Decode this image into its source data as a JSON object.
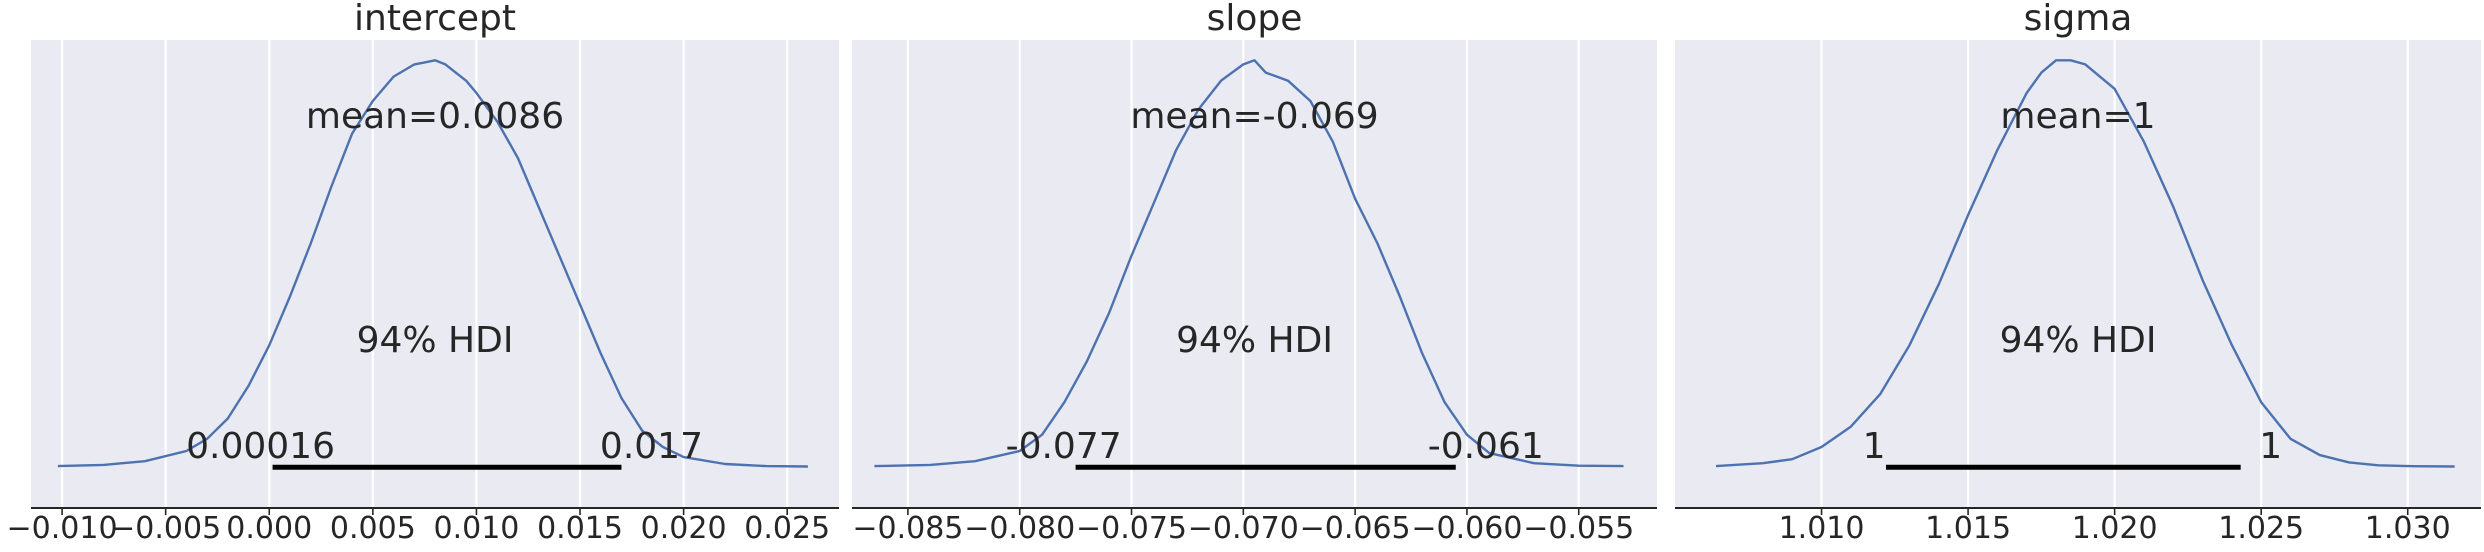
{
  "chart_data": [
    {
      "type": "line",
      "title": "intercept",
      "mean_label": "mean=0.0086",
      "hdi_label": "94% HDI",
      "hdi_low_label": "0.00016",
      "hdi_high_label": "0.017",
      "hdi": [
        0.00016,
        0.017
      ],
      "xlim": [
        -0.0115,
        0.0275
      ],
      "xticks": [
        -0.01,
        -0.005,
        0.0,
        0.005,
        0.01,
        0.015,
        0.02,
        0.025
      ],
      "xtick_labels": [
        "−0.010",
        "−0.005",
        "0.000",
        "0.005",
        "0.010",
        "0.015",
        "0.020",
        "0.025"
      ],
      "ylim": [
        -0.1,
        1.05
      ],
      "grid": true,
      "x": [
        -0.0102,
        -0.008,
        -0.006,
        -0.004,
        -0.003,
        -0.002,
        -0.001,
        0.0,
        0.001,
        0.002,
        0.003,
        0.004,
        0.005,
        0.006,
        0.007,
        0.0075,
        0.008,
        0.0085,
        0.009,
        0.0095,
        0.01,
        0.011,
        0.012,
        0.013,
        0.014,
        0.015,
        0.016,
        0.017,
        0.018,
        0.019,
        0.02,
        0.022,
        0.024,
        0.026
      ],
      "y": [
        0.003,
        0.006,
        0.015,
        0.04,
        0.07,
        0.12,
        0.2,
        0.3,
        0.42,
        0.55,
        0.69,
        0.82,
        0.9,
        0.96,
        0.99,
        0.995,
        1.0,
        0.99,
        0.97,
        0.95,
        0.92,
        0.85,
        0.76,
        0.64,
        0.52,
        0.4,
        0.28,
        0.17,
        0.09,
        0.05,
        0.025,
        0.008,
        0.003,
        0.002
      ]
    },
    {
      "type": "line",
      "title": "slope",
      "mean_label": "mean=-0.069",
      "hdi_label": "94% HDI",
      "hdi_low_label": "-0.077",
      "hdi_high_label": "-0.061",
      "hdi": [
        -0.0775,
        -0.0605
      ],
      "xlim": [
        -0.0875,
        -0.0515
      ],
      "xticks": [
        -0.085,
        -0.08,
        -0.075,
        -0.07,
        -0.065,
        -0.06,
        -0.055
      ],
      "xtick_labels": [
        "−0.085",
        "−0.080",
        "−0.075",
        "−0.070",
        "−0.065",
        "−0.060",
        "−0.055"
      ],
      "ylim": [
        -0.1,
        1.05
      ],
      "grid": true,
      "x": [
        -0.0865,
        -0.084,
        -0.082,
        -0.08,
        -0.079,
        -0.078,
        -0.077,
        -0.076,
        -0.075,
        -0.074,
        -0.073,
        -0.072,
        -0.071,
        -0.07,
        -0.0695,
        -0.069,
        -0.0685,
        -0.068,
        -0.067,
        -0.066,
        -0.065,
        -0.064,
        -0.063,
        -0.062,
        -0.061,
        -0.06,
        -0.059,
        -0.057,
        -0.055,
        -0.053
      ],
      "y": [
        0.003,
        0.006,
        0.015,
        0.04,
        0.08,
        0.16,
        0.26,
        0.38,
        0.52,
        0.65,
        0.78,
        0.88,
        0.95,
        0.99,
        1.0,
        0.97,
        0.96,
        0.95,
        0.9,
        0.8,
        0.66,
        0.55,
        0.42,
        0.28,
        0.16,
        0.08,
        0.035,
        0.01,
        0.004,
        0.003
      ]
    },
    {
      "type": "line",
      "title": "sigma",
      "mean_label": "mean=1",
      "hdi_label": "94% HDI",
      "hdi_low_label": "1",
      "hdi_high_label": "1",
      "hdi": [
        1.0122,
        1.0243
      ],
      "xlim": [
        1.005,
        1.0325
      ],
      "xticks": [
        1.01,
        1.015,
        1.02,
        1.025,
        1.03
      ],
      "xtick_labels": [
        "1.010",
        "1.015",
        "1.020",
        "1.025",
        "1.030"
      ],
      "ylim": [
        -0.1,
        1.05
      ],
      "grid": true,
      "x": [
        1.0064,
        1.008,
        1.009,
        1.01,
        1.011,
        1.012,
        1.013,
        1.014,
        1.015,
        1.016,
        1.017,
        1.0175,
        1.018,
        1.0185,
        1.019,
        1.02,
        1.021,
        1.022,
        1.023,
        1.024,
        1.025,
        1.026,
        1.027,
        1.028,
        1.029,
        1.03,
        1.0316
      ],
      "y": [
        0.003,
        0.01,
        0.02,
        0.05,
        0.1,
        0.18,
        0.3,
        0.45,
        0.62,
        0.78,
        0.92,
        0.97,
        1.0,
        1.0,
        0.99,
        0.93,
        0.8,
        0.64,
        0.46,
        0.3,
        0.16,
        0.07,
        0.03,
        0.012,
        0.005,
        0.003,
        0.002
      ]
    }
  ]
}
